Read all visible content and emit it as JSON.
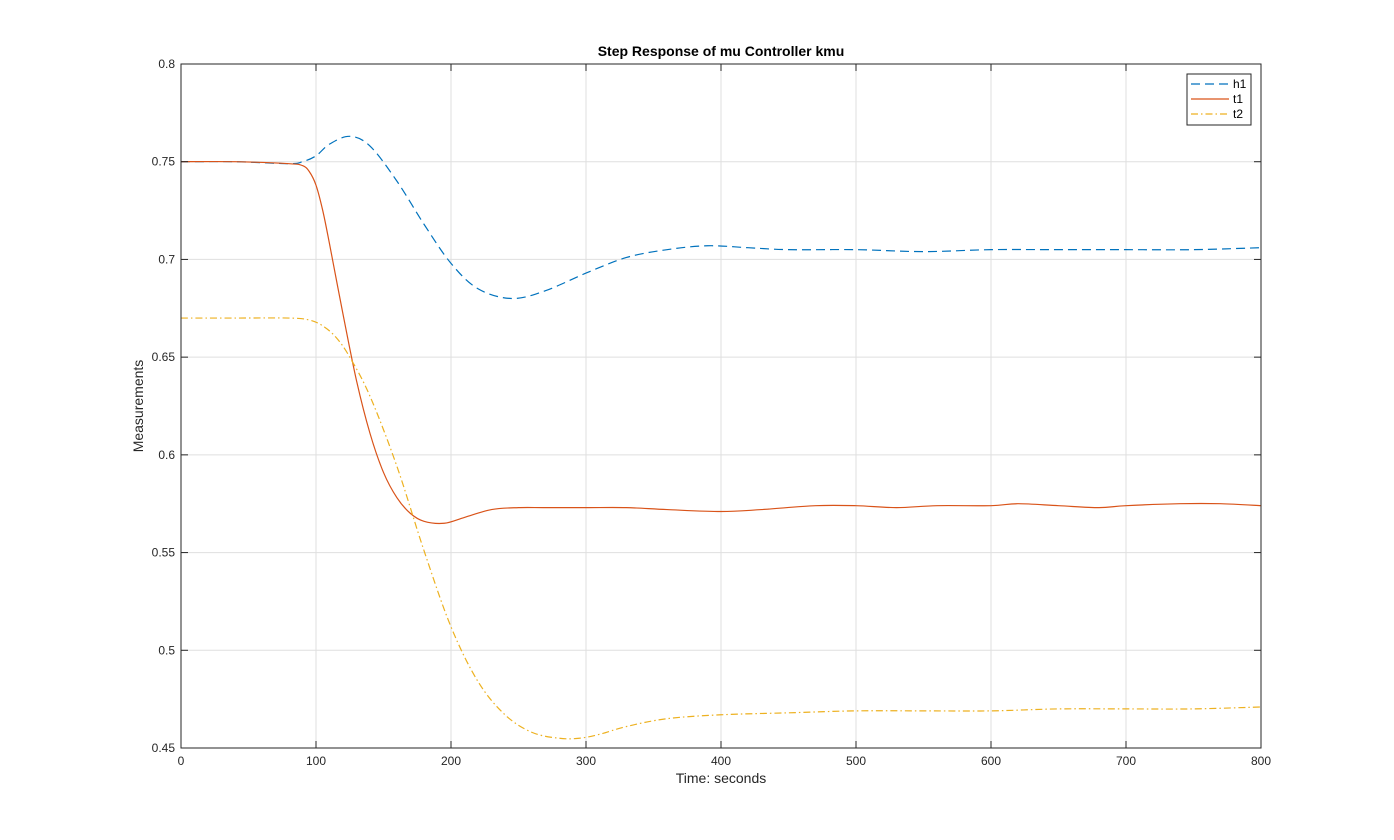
{
  "chart_data": {
    "type": "line",
    "title": "Step Response of mu Controller kmu",
    "xlabel": "Time: seconds",
    "ylabel": "Measurements",
    "xlim": [
      0,
      800
    ],
    "ylim": [
      0.45,
      0.8
    ],
    "xticks": [
      0,
      100,
      200,
      300,
      400,
      500,
      600,
      700,
      800
    ],
    "yticks": [
      0.45,
      0.5,
      0.55,
      0.6,
      0.65,
      0.7,
      0.75,
      0.8
    ],
    "xtick_labels": [
      "0",
      "100",
      "200",
      "300",
      "400",
      "500",
      "600",
      "700",
      "800"
    ],
    "ytick_labels": [
      "0.45",
      "0.5",
      "0.55",
      "0.6",
      "0.65",
      "0.7",
      "0.75",
      "0.8"
    ],
    "grid": true,
    "legend_position": "top-right",
    "series": [
      {
        "name": "h1",
        "color": "#0072BD",
        "line_style": "dashed",
        "x": [
          0,
          40,
          80,
          90,
          100,
          110,
          125,
          140,
          160,
          180,
          200,
          220,
          245,
          270,
          300,
          330,
          360,
          390,
          420,
          450,
          500,
          550,
          600,
          650,
          700,
          750,
          800
        ],
        "y": [
          0.75,
          0.75,
          0.749,
          0.75,
          0.753,
          0.759,
          0.763,
          0.758,
          0.74,
          0.718,
          0.698,
          0.685,
          0.68,
          0.684,
          0.693,
          0.701,
          0.705,
          0.707,
          0.706,
          0.705,
          0.705,
          0.704,
          0.705,
          0.705,
          0.705,
          0.705,
          0.706
        ]
      },
      {
        "name": "t1",
        "color": "#D95319",
        "line_style": "solid",
        "x": [
          0,
          40,
          80,
          90,
          95,
          100,
          105,
          110,
          120,
          130,
          140,
          150,
          160,
          170,
          180,
          195,
          210,
          230,
          250,
          270,
          300,
          330,
          360,
          400,
          430,
          470,
          500,
          530,
          560,
          600,
          620,
          650,
          680,
          700,
          740,
          770,
          800
        ],
        "y": [
          0.75,
          0.75,
          0.749,
          0.748,
          0.745,
          0.738,
          0.725,
          0.708,
          0.672,
          0.638,
          0.611,
          0.591,
          0.578,
          0.57,
          0.566,
          0.565,
          0.568,
          0.572,
          0.573,
          0.573,
          0.573,
          0.573,
          0.572,
          0.571,
          0.572,
          0.574,
          0.574,
          0.573,
          0.574,
          0.574,
          0.575,
          0.574,
          0.573,
          0.574,
          0.575,
          0.575,
          0.574
        ]
      },
      {
        "name": "t2",
        "color": "#EDB120",
        "line_style": "dash-dot",
        "x": [
          0,
          40,
          80,
          95,
          105,
          115,
          125,
          140,
          160,
          180,
          200,
          220,
          240,
          260,
          280,
          295,
          310,
          330,
          360,
          400,
          450,
          500,
          550,
          600,
          650,
          700,
          750,
          800
        ],
        "y": [
          0.67,
          0.67,
          0.67,
          0.669,
          0.666,
          0.66,
          0.65,
          0.63,
          0.594,
          0.551,
          0.512,
          0.484,
          0.467,
          0.458,
          0.455,
          0.455,
          0.457,
          0.461,
          0.465,
          0.467,
          0.468,
          0.469,
          0.469,
          0.469,
          0.47,
          0.47,
          0.47,
          0.471
        ]
      }
    ]
  }
}
